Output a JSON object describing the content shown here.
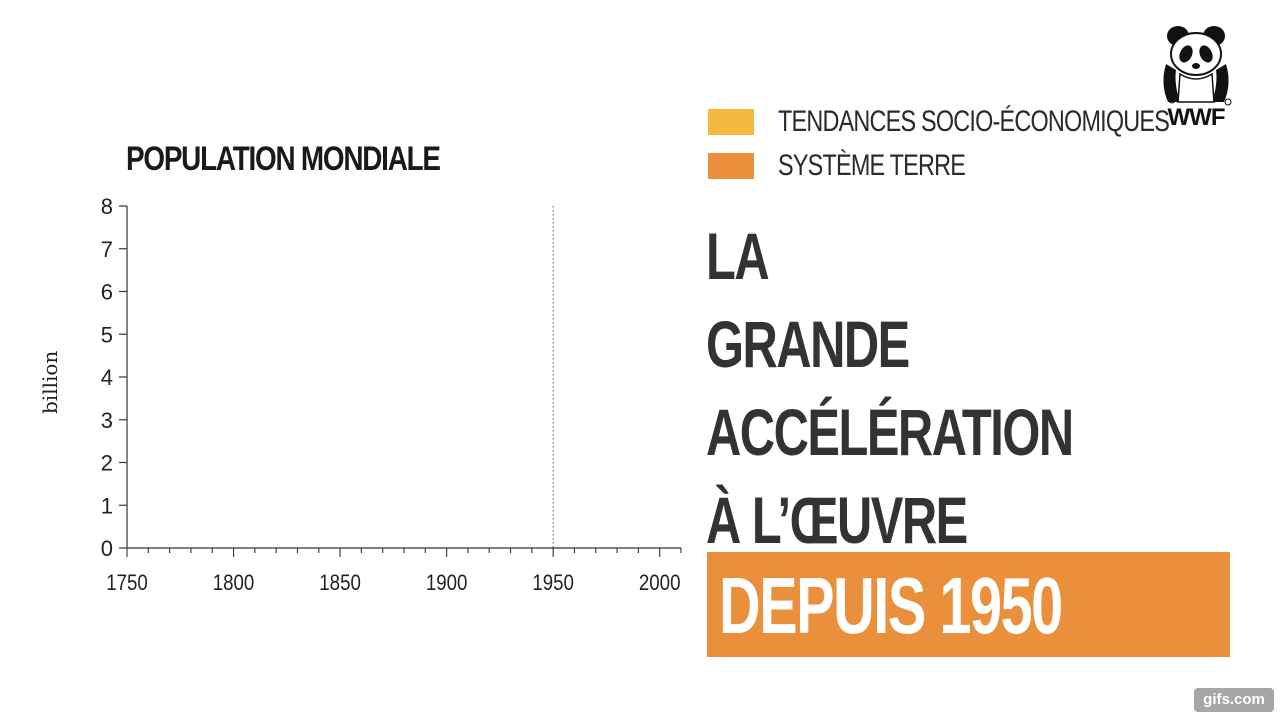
{
  "chart_data": {
    "type": "line",
    "title": "POPULATION MONDIALE",
    "xlabel": "",
    "ylabel": "billion",
    "xlim": [
      1750,
      2010
    ],
    "ylim": [
      0,
      8
    ],
    "x_ticks": [
      1750,
      1800,
      1850,
      1900,
      1950,
      2000
    ],
    "y_ticks": [
      0,
      1,
      2,
      3,
      4,
      5,
      6,
      7,
      8
    ],
    "reference_line_x": 1950,
    "grid": false,
    "series": []
  },
  "legend": {
    "items": [
      {
        "label": "TENDANCES SOCIO-ÉCONOMIQUES",
        "color": "#f5b942"
      },
      {
        "label": "SYSTÈME TERRE",
        "color": "#ea8f3c"
      }
    ]
  },
  "headline": {
    "lines": [
      "LA",
      "GRANDE",
      "ACCÉLÉRATION",
      "À L’ŒUVRE"
    ],
    "highlight": "DEPUIS 1950",
    "highlight_color": "#ea8f3c"
  },
  "logo": {
    "text": "WWF",
    "icon": "panda-icon"
  },
  "watermark": {
    "text": "gifs.com"
  }
}
